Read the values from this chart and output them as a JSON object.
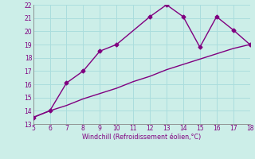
{
  "line1_x": [
    5,
    6,
    7,
    8,
    9,
    10,
    12,
    13,
    14,
    15,
    16,
    17,
    18
  ],
  "line1_y": [
    13.5,
    14.0,
    16.1,
    17.0,
    18.5,
    19.0,
    21.1,
    22.0,
    21.1,
    18.8,
    21.1,
    20.1,
    19.0
  ],
  "line2_x": [
    5,
    6,
    7,
    8,
    9,
    10,
    11,
    12,
    13,
    14,
    15,
    16,
    17,
    18
  ],
  "line2_y": [
    13.5,
    14.0,
    14.4,
    14.9,
    15.3,
    15.7,
    16.2,
    16.6,
    17.1,
    17.5,
    17.9,
    18.3,
    18.7,
    19.0
  ],
  "line_color": "#800080",
  "bg_color": "#cceee8",
  "grid_color": "#aadddd",
  "xlabel": "Windchill (Refroidissement éolien,°C)",
  "xlim": [
    5,
    18
  ],
  "ylim": [
    13,
    22
  ],
  "xticks": [
    5,
    6,
    7,
    8,
    9,
    10,
    11,
    12,
    13,
    14,
    15,
    16,
    17,
    18
  ],
  "yticks": [
    13,
    14,
    15,
    16,
    17,
    18,
    19,
    20,
    21,
    22
  ],
  "xlabel_color": "#800080",
  "tick_color": "#800080",
  "marker": "D",
  "marker_size": 2.5,
  "line_width": 1.0
}
